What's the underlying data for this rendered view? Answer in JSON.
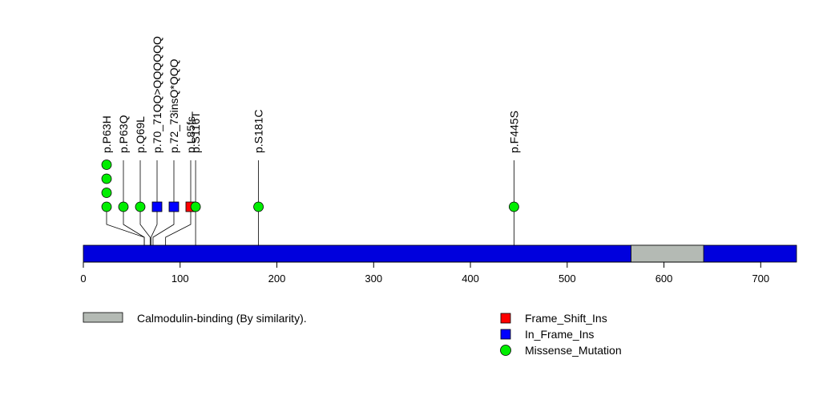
{
  "chart_data": {
    "type": "scatter",
    "title": "",
    "xlabel": "",
    "ylabel": "",
    "xlim": [
      0,
      737
    ],
    "x_ticks": [
      0,
      100,
      200,
      300,
      400,
      500,
      600,
      700
    ],
    "protein_length": 737,
    "backbone_color": "#0000dd",
    "domains": [
      {
        "name": "Calmodulin-binding (By similarity).",
        "start": 566,
        "end": 641,
        "color": "#b4bab4"
      }
    ],
    "mutations": [
      {
        "label": "p.P63H",
        "position": 63,
        "count": 4,
        "type": "Missense_Mutation"
      },
      {
        "label": "p.P63Q",
        "position": 63,
        "count": 1,
        "type": "Missense_Mutation"
      },
      {
        "label": "p.Q69L",
        "position": 69,
        "count": 1,
        "type": "Missense_Mutation"
      },
      {
        "label": "p.70_71QQ>QQQQQQ",
        "position": 70,
        "count": 1,
        "type": "In_Frame_Ins"
      },
      {
        "label": "p.72_73insQ*QQQ",
        "position": 72,
        "count": 1,
        "type": "In_Frame_Ins"
      },
      {
        "label": "p.L85fs",
        "position": 85,
        "count": 1,
        "type": "Frame_Shift_Ins"
      },
      {
        "label": "p.S116T",
        "position": 116,
        "count": 1,
        "type": "Missense_Mutation"
      },
      {
        "label": "p.S181C",
        "position": 181,
        "count": 1,
        "type": "Missense_Mutation"
      },
      {
        "label": "p.F445S",
        "position": 445,
        "count": 1,
        "type": "Missense_Mutation"
      }
    ],
    "mutation_legend": [
      {
        "name": "Frame_Shift_Ins",
        "color": "#ff0000",
        "shape": "square"
      },
      {
        "name": "In_Frame_Ins",
        "color": "#0000ff",
        "shape": "square"
      },
      {
        "name": "Missense_Mutation",
        "color": "#00ee00",
        "shape": "circle"
      }
    ]
  }
}
